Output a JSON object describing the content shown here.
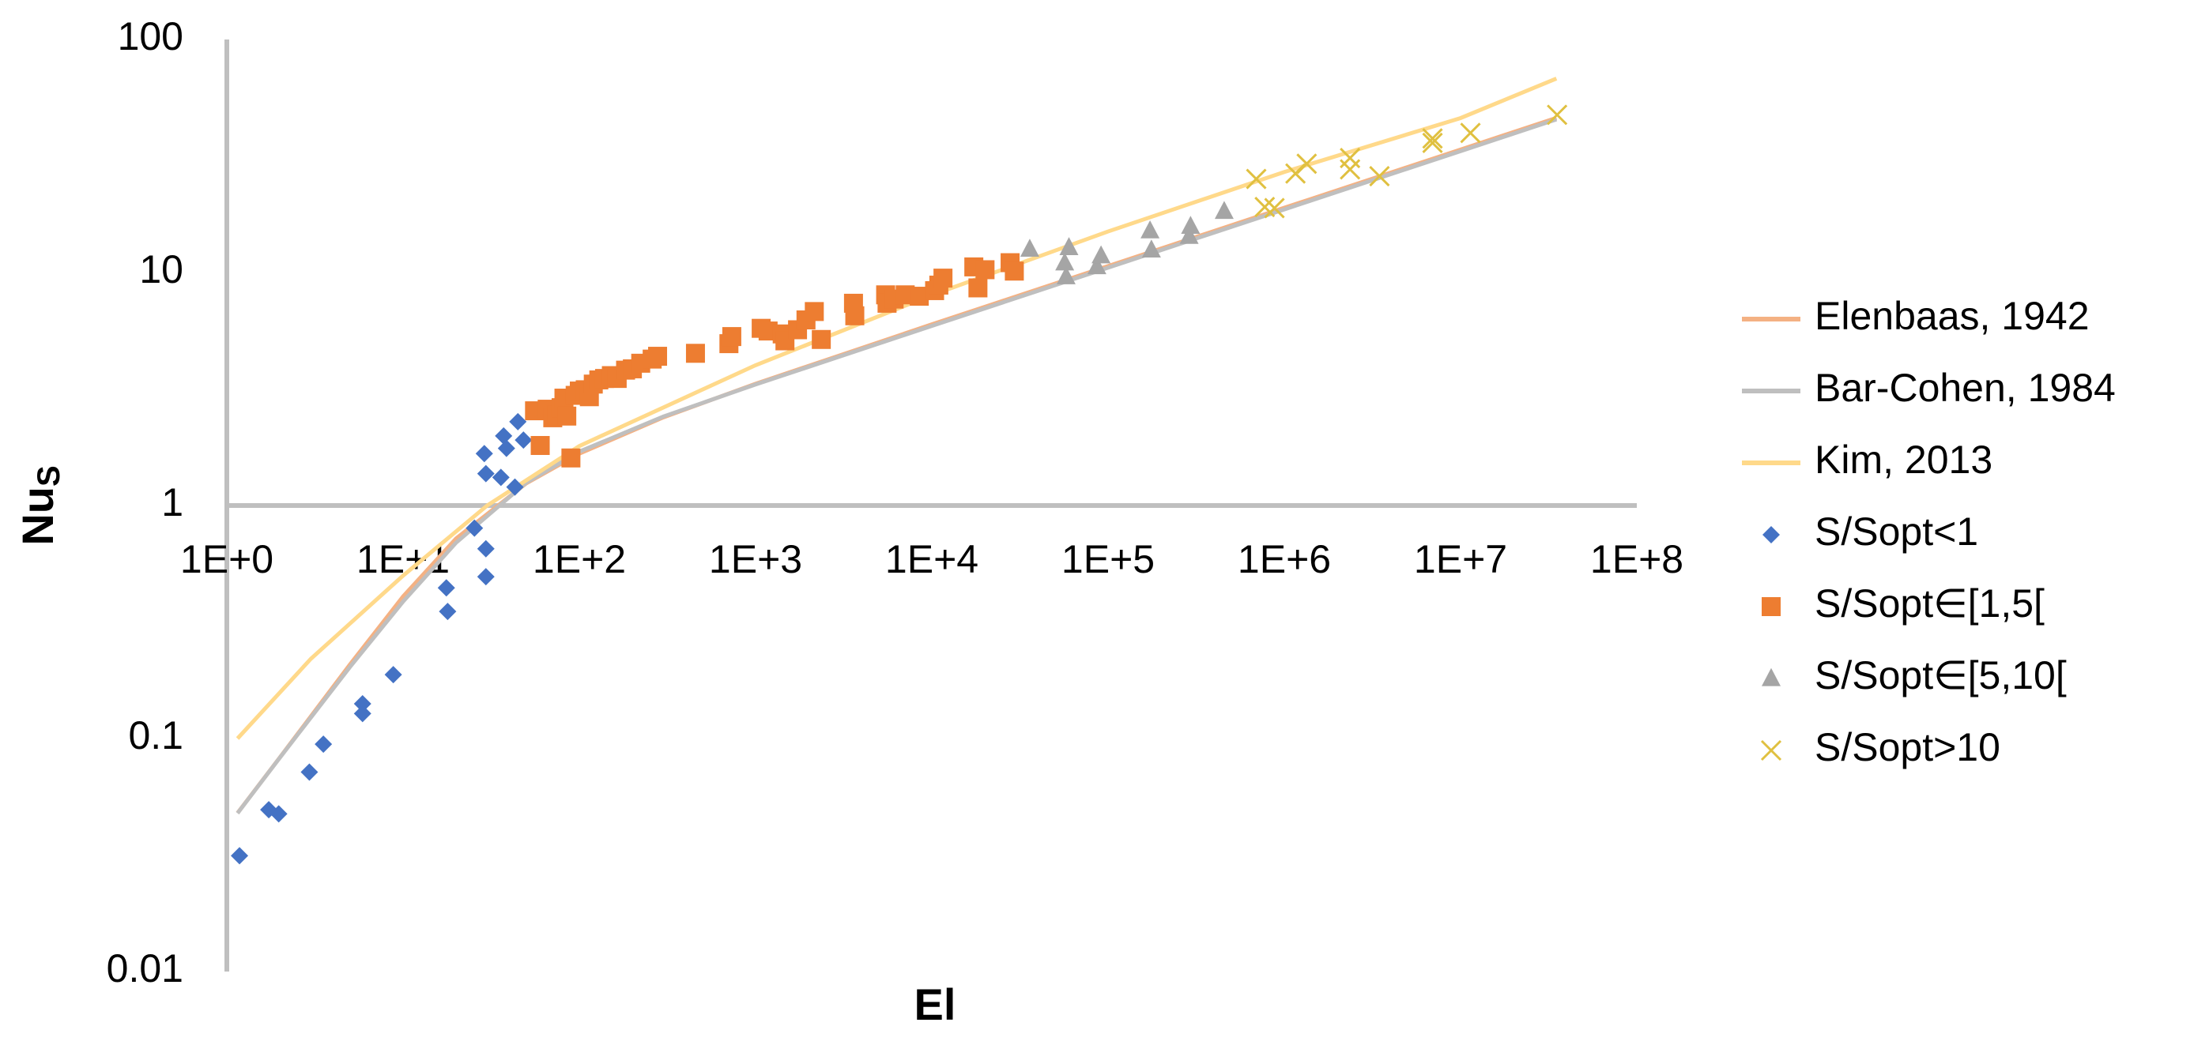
{
  "chart_data": {
    "type": "scatter",
    "xlabel": "El",
    "ylabel": "Nu",
    "ylabel_sub": "S",
    "xscale": "log",
    "yscale": "log",
    "xlim": [
      1,
      100000000
    ],
    "ylim": [
      0.01,
      100
    ],
    "xticks": [
      {
        "value": 1,
        "label": "1E+0"
      },
      {
        "value": 10,
        "label": "1E+1"
      },
      {
        "value": 100,
        "label": "1E+2"
      },
      {
        "value": 1000,
        "label": "1E+3"
      },
      {
        "value": 10000,
        "label": "1E+4"
      },
      {
        "value": 100000,
        "label": "1E+5"
      },
      {
        "value": 1000000,
        "label": "1E+6"
      },
      {
        "value": 10000000,
        "label": "1E+7"
      },
      {
        "value": 100000000,
        "label": "1E+8"
      }
    ],
    "yticks": [
      0.01,
      0.1,
      1,
      10,
      100
    ],
    "xaxis_at": 1,
    "legend": "right",
    "series": [
      {
        "name": "Elenbaas, 1942",
        "color": "#f4b183",
        "mode": "line",
        "x": [
          1.15,
          2,
          5,
          10,
          20,
          50,
          100,
          300,
          1000,
          10000,
          100000,
          1000000,
          10000000,
          35000000
        ],
        "y": [
          0.0479,
          0.083,
          0.208,
          0.407,
          0.722,
          1.245,
          1.669,
          2.39,
          3.33,
          5.99,
          10.66,
          18.96,
          33.7,
          46.1
        ]
      },
      {
        "name": "Bar-Cohen, 1984",
        "color": "#bfbfbf",
        "mode": "line",
        "x": [
          1.15,
          2,
          5,
          10,
          20,
          50,
          100,
          300,
          1000,
          10000,
          100000,
          1000000,
          10000000,
          35000000
        ],
        "y": [
          0.0478,
          0.0828,
          0.203,
          0.387,
          0.693,
          1.253,
          1.703,
          2.41,
          3.307,
          5.9,
          10.49,
          18.66,
          33.18,
          45.4
        ]
      },
      {
        "name": "Kim, 2013",
        "color": "#ffd98a",
        "mode": "line",
        "x": [
          1.15,
          3,
          10,
          30,
          100,
          1000,
          10000,
          100000,
          1000000,
          10000000,
          35000000
        ],
        "y": [
          0.1,
          0.22,
          0.5,
          1.0,
          1.8,
          4.0,
          8.0,
          15,
          27,
          46,
          68
        ]
      },
      {
        "name": "S/Sopt<1",
        "color": "#4472c4",
        "mode": "marker",
        "marker": "diamond",
        "x": [
          1.18,
          1.73,
          1.97,
          2.94,
          3.53,
          5.89,
          5.89,
          8.8,
          17.6,
          17.9,
          25.4,
          28.9,
          29.5,
          29.5,
          29.5,
          35.9,
          37.2,
          38.6,
          43.1,
          44.8,
          48.2
        ],
        "y": [
          0.0314,
          0.0495,
          0.0475,
          0.0718,
          0.0946,
          0.128,
          0.141,
          0.188,
          0.443,
          0.351,
          0.8,
          1.67,
          1.37,
          0.652,
          0.495,
          1.32,
          1.99,
          1.76,
          1.2,
          2.29,
          1.91
        ]
      },
      {
        "name": "S/Sopt∈[1,5[",
        "color": "#ed7d31",
        "mode": "marker",
        "marker": "square",
        "x": [
          55.7,
          60,
          65.7,
          70.7,
          74.7,
          78.8,
          81.8,
          84.9,
          89.6,
          94.7,
          100,
          108,
          114,
          120,
          129,
          139,
          152,
          164,
          183,
          200,
          223,
          259,
          278,
          456,
          706,
          733,
          1076,
          1178,
          1416,
          1468,
          1730,
          1932,
          2154,
          2360,
          3594,
          3656,
          5470,
          5572,
          6109,
          7063,
          8488,
          10370,
          10960,
          11570,
          17310,
          18270,
          20040,
          27810,
          29390
        ],
        "y": [
          2.55,
          1.81,
          2.59,
          2.38,
          2.45,
          2.63,
          2.89,
          2.42,
          1.6,
          2.97,
          3.1,
          3.14,
          2.93,
          3.32,
          3.46,
          3.51,
          3.61,
          3.51,
          3.81,
          3.86,
          4.08,
          4.25,
          4.37,
          4.5,
          4.95,
          5.31,
          5.76,
          5.61,
          5.45,
          5.09,
          5.68,
          6.26,
          6.8,
          5.16,
          7.38,
          6.52,
          8.02,
          7.38,
          7.69,
          8.02,
          7.91,
          8.36,
          8.83,
          9.46,
          10.57,
          8.59,
          10.28,
          11.02,
          10.14
        ]
      },
      {
        "name": "S/Sopt∈[5,10[",
        "color": "#a5a5a5",
        "mode": "marker",
        "marker": "triangle",
        "x": [
          35950,
          56750,
          57810,
          59980,
          86420,
          91240,
          173000,
          176200,
          288400,
          293800,
          456000
        ],
        "y": [
          12.6,
          11.0,
          9.6,
          12.8,
          10.6,
          11.8,
          15.1,
          12.5,
          14.3,
          15.8,
          18.3
        ]
      },
      {
        "name": "S/Sopt>10",
        "color": "#e0c040",
        "mode": "marker",
        "marker": "x",
        "x": [
          693000,
          774500,
          879500,
          1157000,
          1340000,
          2360000,
          2360000,
          3467000,
          6934000,
          6934000,
          11380000,
          35300000
        ],
        "y": [
          25.2,
          19.1,
          18.9,
          26.6,
          29.3,
          27.7,
          31.0,
          25.9,
          37.6,
          36.0,
          39.7,
          47.5
        ]
      }
    ]
  }
}
